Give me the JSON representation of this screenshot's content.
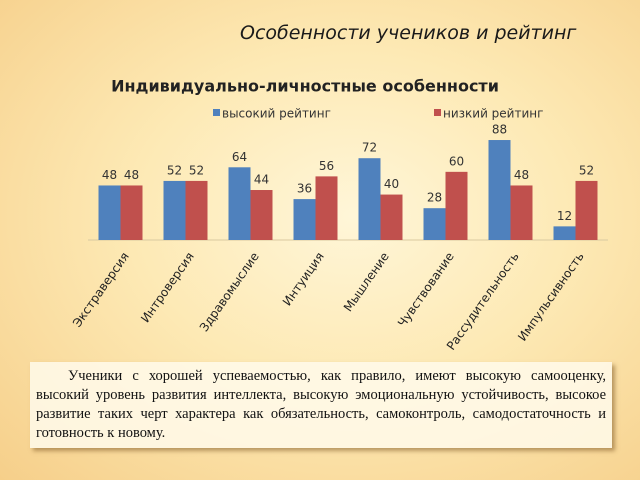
{
  "heading": "Особенности учеников и рейтинг",
  "chart_data": {
    "type": "bar",
    "title": "Индивидуально-личностные особенности",
    "categories": [
      "Экстраверсия",
      "Интроверсия",
      "Здравомыслие",
      "Интуиция",
      "Мышление",
      "Чувствование",
      "Рассудительность",
      "Импульсивность"
    ],
    "series": [
      {
        "name": "высокий рейтинг",
        "color": "#4f81bd",
        "values": [
          48,
          52,
          64,
          36,
          72,
          28,
          88,
          12
        ]
      },
      {
        "name": "низкий рейтинг",
        "color": "#c0504d",
        "values": [
          48,
          52,
          44,
          56,
          40,
          60,
          48,
          52
        ]
      }
    ]
  },
  "note": "Ученики с хорошей успеваемостью, как правило, имеют высокую самооценку, высокий уровень развития интеллекта, высокую эмоциональную устойчивость, высокое развитие таких черт характера как обязательность, самоконтроль, самодостаточность и готовность к новому."
}
